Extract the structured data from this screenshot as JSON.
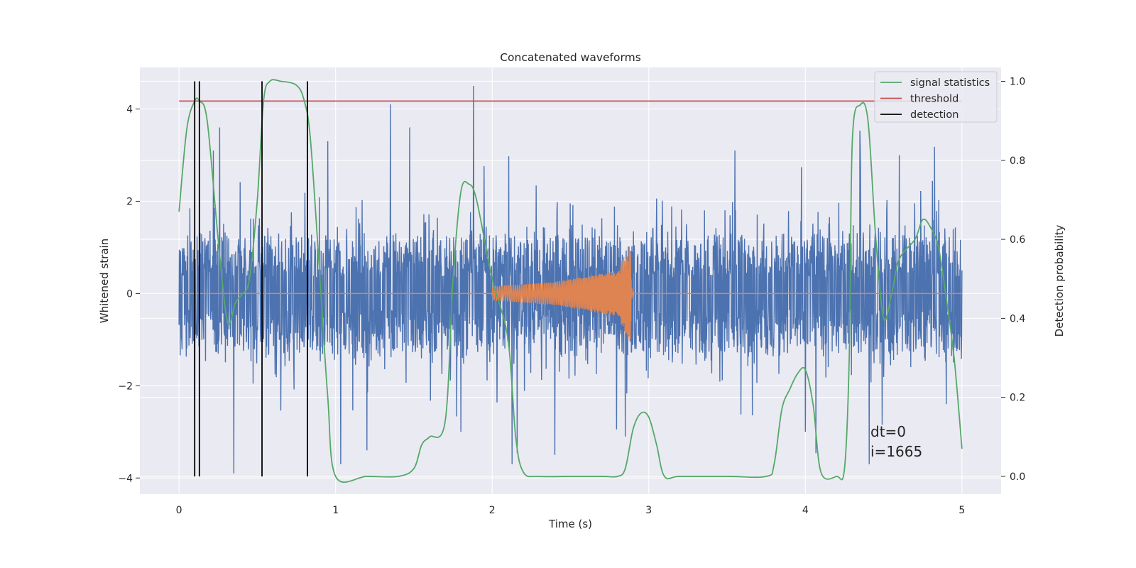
{
  "chart_data": {
    "type": "line",
    "title": "Concatenated waveforms",
    "xlabel": "Time (s)",
    "ylabel": "Whitened strain",
    "y2label": "Detection probability",
    "xlim": [
      -0.25,
      5.25
    ],
    "ylim": [
      -4.35,
      4.9
    ],
    "y2lim": [
      -0.045,
      1.035
    ],
    "xticks": [
      0,
      1,
      2,
      3,
      4,
      5
    ],
    "yticks": [
      -4,
      -2,
      0,
      2,
      4
    ],
    "y2ticks": [
      0.0,
      0.2,
      0.4,
      0.6,
      0.8,
      1.0
    ],
    "grid": true,
    "legend_position": "top-right",
    "colors": {
      "background": "#eaeaf2",
      "grid": "#ffffff",
      "strain": "#4c72b0",
      "injection": "#dd8452",
      "statistics": "#55a868",
      "threshold": "#c44e52",
      "detection": "#000000"
    },
    "series": [
      {
        "name": "whitened strain noise",
        "axis": "left",
        "x_range": [
          0,
          5
        ],
        "envelope_abs": 1.6,
        "spikes": [
          [
            1.35,
            4.1
          ],
          [
            1.88,
            4.5
          ],
          [
            0.22,
            3.1
          ],
          [
            0.95,
            3.3
          ],
          [
            1.2,
            -3.4
          ],
          [
            1.8,
            -3.0
          ],
          [
            2.4,
            -3.5
          ],
          [
            0.35,
            -3.9
          ],
          [
            3.55,
            3.1
          ],
          [
            4.6,
            3.0
          ],
          [
            4.35,
            3.2
          ],
          [
            0.1,
            -2.7
          ],
          [
            2.85,
            -3.1
          ],
          [
            4.0,
            -3.0
          ],
          [
            4.9,
            -2.4
          ]
        ]
      },
      {
        "name": "injected waveform",
        "axis": "left",
        "x": [
          2.0,
          2.4,
          2.8,
          2.88,
          2.9
        ],
        "amplitude": [
          0.15,
          0.25,
          0.5,
          1.1,
          0.0
        ]
      },
      {
        "name": "signal statistics",
        "axis": "right",
        "x": [
          0.0,
          0.05,
          0.1,
          0.13,
          0.18,
          0.25,
          0.31,
          0.36,
          0.4,
          0.45,
          0.5,
          0.54,
          0.58,
          0.65,
          0.75,
          0.8,
          0.84,
          0.9,
          0.95,
          1.0,
          1.2,
          1.4,
          1.5,
          1.55,
          1.6,
          1.7,
          1.75,
          1.8,
          1.85,
          1.9,
          2.0,
          2.1,
          2.15,
          2.2,
          2.3,
          2.5,
          2.7,
          2.8,
          2.85,
          2.9,
          2.95,
          3.0,
          3.05,
          3.1,
          3.2,
          3.5,
          3.75,
          3.8,
          3.85,
          3.9,
          3.95,
          4.0,
          4.05,
          4.1,
          4.2,
          4.25,
          4.28,
          4.3,
          4.35,
          4.4,
          4.45,
          4.5,
          4.55,
          4.6,
          4.7,
          4.75,
          4.8,
          4.85,
          4.9,
          4.95,
          5.0
        ],
        "y": [
          0.67,
          0.88,
          0.95,
          0.95,
          0.9,
          0.6,
          0.39,
          0.44,
          0.46,
          0.5,
          0.7,
          0.95,
          1.0,
          1.0,
          0.99,
          0.95,
          0.85,
          0.5,
          0.2,
          0.0,
          0.0,
          0.0,
          0.02,
          0.08,
          0.1,
          0.14,
          0.5,
          0.72,
          0.74,
          0.7,
          0.5,
          0.35,
          0.1,
          0.01,
          0.0,
          0.0,
          0.0,
          0.0,
          0.02,
          0.12,
          0.16,
          0.15,
          0.08,
          0.0,
          0.0,
          0.0,
          0.0,
          0.03,
          0.17,
          0.22,
          0.26,
          0.27,
          0.18,
          0.01,
          0.0,
          0.02,
          0.3,
          0.85,
          0.94,
          0.9,
          0.6,
          0.4,
          0.46,
          0.55,
          0.6,
          0.65,
          0.63,
          0.58,
          0.45,
          0.3,
          0.07
        ]
      },
      {
        "name": "threshold",
        "axis": "right",
        "x": [
          0,
          5
        ],
        "y": [
          0.95,
          0.95
        ]
      },
      {
        "name": "detection",
        "axis": "right",
        "x": [
          0.1,
          0.13,
          0.53,
          0.82
        ],
        "y_range": [
          0.0,
          1.0
        ]
      }
    ],
    "legend": [
      "signal statistics",
      "threshold",
      "detection"
    ],
    "annotations": [
      "dt=0",
      "i=1665"
    ]
  }
}
